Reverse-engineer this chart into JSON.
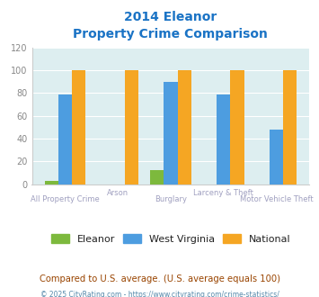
{
  "title_line1": "2014 Eleanor",
  "title_line2": "Property Crime Comparison",
  "categories": [
    "All Property Crime",
    "Arson",
    "Burglary",
    "Larceny & Theft",
    "Motor Vehicle Theft"
  ],
  "eleanor": [
    3,
    0,
    12,
    0,
    0
  ],
  "west_virginia": [
    79,
    0,
    90,
    79,
    48
  ],
  "national": [
    100,
    100,
    100,
    100,
    100
  ],
  "eleanor_color": "#7db93d",
  "wv_color": "#4d9de0",
  "national_color": "#f5a623",
  "bg_color": "#ddeef0",
  "ylim": [
    0,
    120
  ],
  "yticks": [
    0,
    20,
    40,
    60,
    80,
    100,
    120
  ],
  "xlabel_color": "#a0a0c0",
  "title_color": "#1a73c5",
  "footnote": "Compared to U.S. average. (U.S. average equals 100)",
  "copyright": "© 2025 CityRating.com - https://www.cityrating.com/crime-statistics/",
  "footnote_color": "#994400",
  "copyright_color": "#5588aa",
  "legend_label_color": "#222222"
}
